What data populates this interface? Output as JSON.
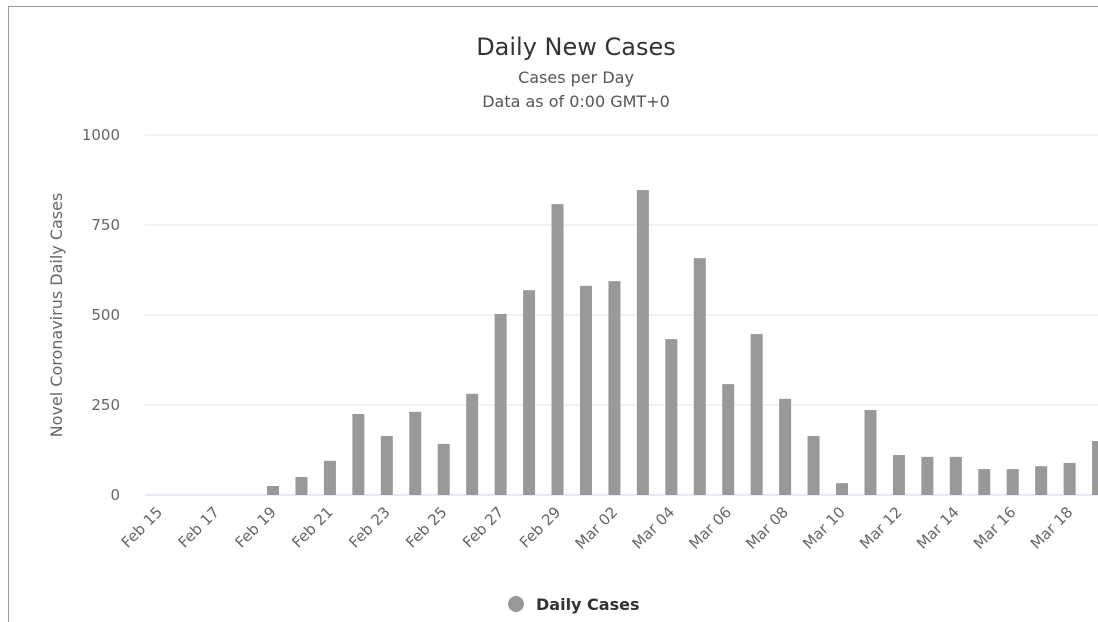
{
  "chart_data": {
    "type": "bar",
    "title": "Daily New Cases",
    "subtitle": [
      "Cases per Day",
      "Data as of 0:00 GMT+0"
    ],
    "y_label": "Novel Coronavirus Daily Cases",
    "categories": [
      "Feb 15",
      null,
      "Feb 17",
      null,
      "Feb 19",
      null,
      "Feb 21",
      null,
      "Feb 23",
      null,
      "Feb 25",
      null,
      "Feb 27",
      null,
      "Feb 29",
      null,
      "Mar 02",
      null,
      "Mar 04",
      null,
      "Mar 06",
      null,
      "Mar 08",
      null,
      "Mar 10",
      null,
      "Mar 12",
      null,
      "Mar 14",
      null,
      "Mar 16",
      null,
      "Mar 18",
      null
    ],
    "series": [
      {
        "name": "Daily Cases",
        "color": "#999999",
        "values": [
          0,
          0,
          0,
          0,
          25,
          50,
          95,
          225,
          164,
          231,
          142,
          281,
          503,
          569,
          808,
          581,
          594,
          847,
          433,
          658,
          308,
          447,
          267,
          164,
          33,
          236,
          111,
          106,
          106,
          72,
          72,
          80,
          89,
          150
        ]
      }
    ],
    "ylim": [
      0,
      1000
    ],
    "yticks": [
      0,
      250,
      500,
      750,
      1000
    ],
    "grid": true
  }
}
